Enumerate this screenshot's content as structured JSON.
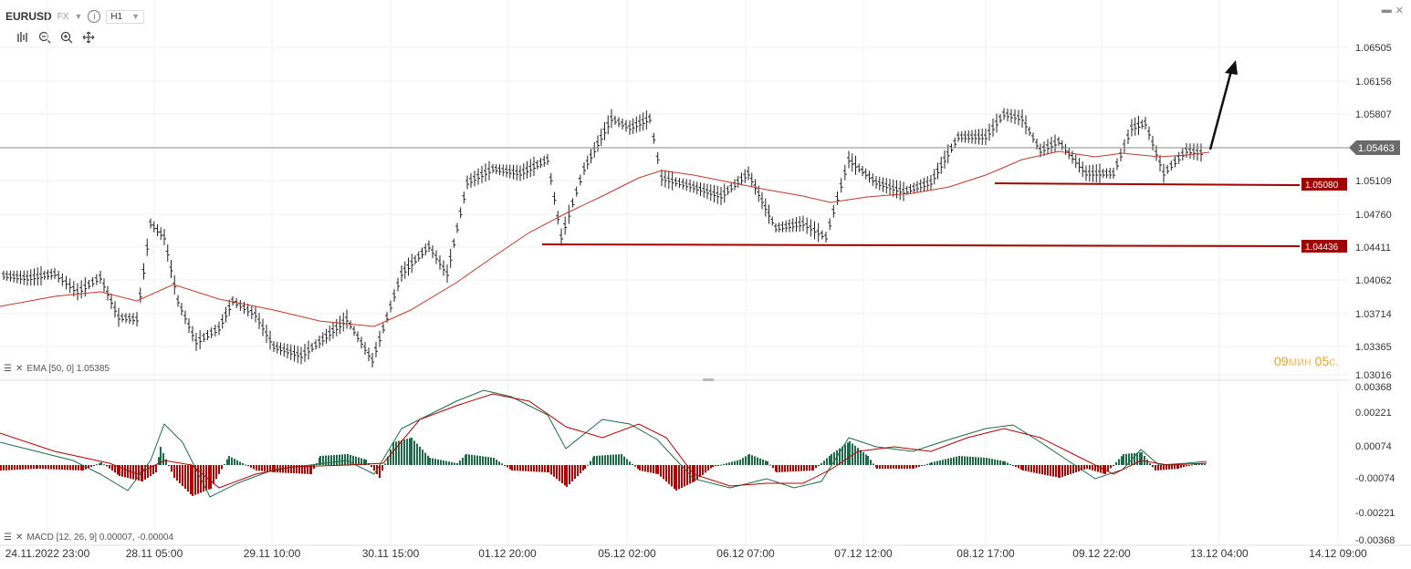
{
  "header": {
    "symbol": "EURUSD",
    "market": "FX",
    "timeframe": "H1"
  },
  "timer": {
    "minutes": "09",
    "min_label": "мин",
    "seconds": "05",
    "sec_label": "с."
  },
  "price_axis": [
    "1.06505",
    "1.06156",
    "1.05807",
    "1.05463",
    "1.05109",
    "1.04760",
    "1.04411",
    "1.04062",
    "1.03714",
    "1.03365",
    "1.03016"
  ],
  "current_price": "1.05463",
  "levels": [
    {
      "label": "1.05080",
      "color": "#a00000"
    },
    {
      "label": "1.04436",
      "color": "#a00000"
    }
  ],
  "ema_label": "EMA [50, 0] 1.05385",
  "macd_label": "MACD [12, 26, 9] 0.00007, -0.00004",
  "macd_axis": [
    "0.00368",
    "0.00221",
    "0.00074",
    "-0.00074",
    "-0.00221",
    "-0.00368"
  ],
  "time_axis": [
    "24.11.2022 23:00",
    "28.11 05:00",
    "29.11 10:00",
    "30.11 15:00",
    "01.12 20:00",
    "05.12 02:00",
    "06.12 07:00",
    "07.12 12:00",
    "08.12 17:00",
    "09.12 22:00",
    "13.12 04:00",
    "14.12 09:00"
  ],
  "colors": {
    "ema": "#c0392b",
    "macd_up": "#1e6b4a",
    "macd_down": "#b30000",
    "level": "#a00000",
    "current": "#555555"
  }
}
